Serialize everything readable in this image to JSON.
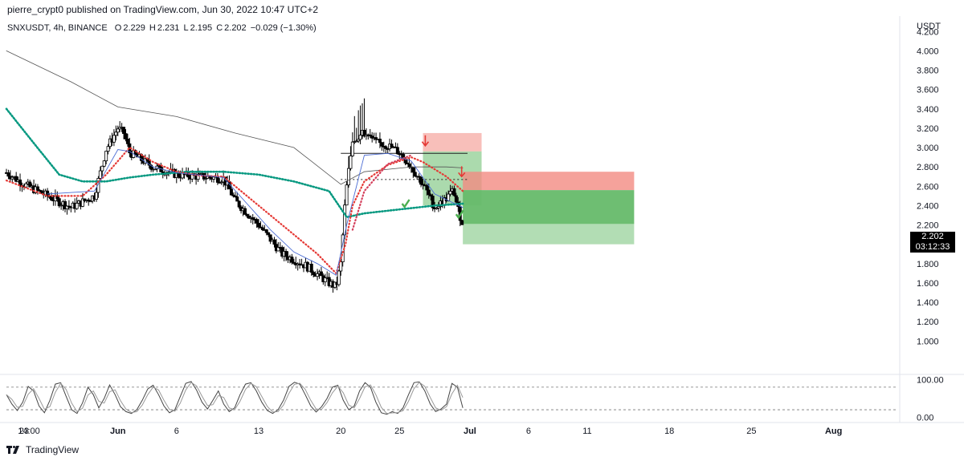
{
  "header": {
    "published": "pierre_crypt0 published on TradingView.com, Jun 30, 2022 10:47 UTC+2"
  },
  "symbol": {
    "name": "SNXUSDT, 4h, BINANCE",
    "o_label": "O",
    "o_value": "2.229",
    "h_label": "H",
    "h_value": "2.231",
    "l_label": "L",
    "l_value": "2.195",
    "c_label": "C",
    "c_value": "2.202",
    "change": "−0.029 (−1.30%)"
  },
  "price_tag": {
    "price": "2.202",
    "countdown": "03:12:33"
  },
  "footer": {
    "brand": "TradingView"
  },
  "colors": {
    "candle": "#000000",
    "ma_long": "#555555",
    "ema_teal": "#089981",
    "ema_red": "#e53935",
    "ema_blue": "#4b6cd4",
    "ema_pink": "#d4405c",
    "zone_loss": "#f28b82",
    "zone_profit": "#66bb6a",
    "stoch": "#444444"
  },
  "chart_data": [
    {
      "type": "candlestick",
      "title": "",
      "symbol": "SNXUSDT",
      "interval": "4h",
      "exchange": "BINANCE",
      "currency_label": "USDT",
      "y_ticks": [
        "4.200",
        "4.000",
        "3.800",
        "3.600",
        "3.400",
        "3.200",
        "3.000",
        "2.800",
        "2.600",
        "2.400",
        "2.200",
        "2.000",
        "1.800",
        "1.600",
        "1.400",
        "1.200",
        "1.000"
      ],
      "ylim": [
        0.82,
        4.36
      ],
      "x_ticks": [
        "23",
        "14:00",
        "Jun",
        "6",
        "13",
        "20",
        "25",
        "Jul",
        "6",
        "11",
        "18",
        "25",
        "Aug"
      ],
      "x_tick_days": [
        -8,
        -7.58,
        0,
        5,
        12,
        19,
        24,
        30,
        35,
        40,
        47,
        54,
        61
      ],
      "xlim": [
        -9.5,
        66.5
      ],
      "anchors": [
        [
          -9.5,
          2.74
        ],
        [
          -8,
          2.62
        ],
        [
          -6,
          2.5
        ],
        [
          -4,
          2.38
        ],
        [
          -2,
          2.5
        ],
        [
          -1,
          2.98
        ],
        [
          0,
          3.2
        ],
        [
          0.5,
          3.15
        ],
        [
          1,
          2.95
        ],
        [
          3,
          2.8
        ],
        [
          5,
          2.72
        ],
        [
          7,
          2.7
        ],
        [
          9,
          2.68
        ],
        [
          10,
          2.45
        ],
        [
          12,
          2.2
        ],
        [
          14,
          1.9
        ],
        [
          16,
          1.78
        ],
        [
          18,
          1.6
        ],
        [
          18.6,
          1.56
        ],
        [
          19,
          1.8
        ],
        [
          19.4,
          2.5
        ],
        [
          20,
          3.08
        ],
        [
          21,
          3.15
        ],
        [
          22,
          3.05
        ],
        [
          23,
          3.02
        ],
        [
          24,
          2.95
        ],
        [
          25,
          2.8
        ],
        [
          26,
          2.62
        ],
        [
          27,
          2.38
        ],
        [
          27.8,
          2.45
        ],
        [
          28.6,
          2.56
        ],
        [
          29,
          2.35
        ],
        [
          29.4,
          2.2
        ]
      ],
      "last_close": 2.202,
      "overlays": [
        {
          "name": "MA long",
          "points": [
            [
              -9.5,
              4.0
            ],
            [
              -4,
              3.68
            ],
            [
              0,
              3.42
            ],
            [
              5,
              3.32
            ],
            [
              10,
              3.15
            ],
            [
              15,
              3.0
            ],
            [
              19,
              2.62
            ],
            [
              21,
              2.75
            ],
            [
              25,
              2.8
            ],
            [
              28,
              2.8
            ],
            [
              29.4,
              2.79
            ]
          ]
        },
        {
          "name": "EMA teal",
          "points": [
            [
              -9.5,
              3.4
            ],
            [
              -7,
              3.02
            ],
            [
              -5,
              2.72
            ],
            [
              -3,
              2.65
            ],
            [
              -1,
              2.65
            ],
            [
              1,
              2.69
            ],
            [
              3,
              2.72
            ],
            [
              6,
              2.75
            ],
            [
              9,
              2.75
            ],
            [
              12,
              2.72
            ],
            [
              15,
              2.65
            ],
            [
              18,
              2.55
            ],
            [
              19.5,
              2.28
            ],
            [
              21,
              2.32
            ],
            [
              24,
              2.36
            ],
            [
              27,
              2.4
            ],
            [
              29.4,
              2.42
            ]
          ]
        },
        {
          "name": "EMA red",
          "points": [
            [
              -9.5,
              2.66
            ],
            [
              -6,
              2.5
            ],
            [
              -3,
              2.5
            ],
            [
              -1,
              2.72
            ],
            [
              1,
              3.0
            ],
            [
              3,
              2.85
            ],
            [
              5,
              2.75
            ],
            [
              7,
              2.71
            ],
            [
              9,
              2.7
            ],
            [
              11,
              2.5
            ],
            [
              13,
              2.3
            ],
            [
              15,
              2.1
            ],
            [
              17,
              1.9
            ],
            [
              18.6,
              1.7
            ],
            [
              19.4,
              2.0
            ],
            [
              20,
              2.4
            ],
            [
              21,
              2.65
            ],
            [
              23,
              2.82
            ],
            [
              25,
              2.9
            ],
            [
              26,
              2.85
            ],
            [
              28,
              2.7
            ],
            [
              29.4,
              2.55
            ]
          ]
        },
        {
          "name": "EMA pink",
          "points": [
            [
              20,
              2.15
            ],
            [
              21,
              2.55
            ],
            [
              23,
              2.83
            ],
            [
              25,
              2.92
            ]
          ]
        },
        {
          "name": "EMA blue",
          "points": [
            [
              -6,
              2.52
            ],
            [
              -2,
              2.55
            ],
            [
              0,
              2.98
            ],
            [
              1,
              2.96
            ],
            [
              3,
              2.8
            ],
            [
              5,
              2.74
            ],
            [
              9,
              2.69
            ],
            [
              11,
              2.42
            ],
            [
              13,
              2.15
            ],
            [
              15,
              1.92
            ],
            [
              17,
              1.8
            ],
            [
              18.6,
              1.68
            ],
            [
              19.5,
              2.2
            ],
            [
              21,
              2.92
            ],
            [
              23,
              2.94
            ],
            [
              25,
              2.86
            ],
            [
              27,
              2.52
            ],
            [
              29.4,
              2.38
            ]
          ]
        }
      ],
      "annotations": {
        "hlines": [
          {
            "price": 2.94,
            "from": 19,
            "to": 29.8,
            "style": "solid"
          },
          {
            "price": 2.67,
            "from": 19,
            "to": 29.8,
            "style": "dotted"
          }
        ],
        "short_positions": [
          {
            "x_from": 26,
            "x_to": 31,
            "entry": 2.96,
            "stop": 3.15,
            "target": 2.4
          },
          {
            "x_from": 29.4,
            "x_to": 44,
            "entry": 2.56,
            "stop": 2.75,
            "target": 2.0,
            "partial": 2.21
          }
        ],
        "entry_arrows": [
          {
            "x": 26.2,
            "price": 3.06
          },
          {
            "x": 29.3,
            "price": 2.74
          }
        ],
        "checkmarks": [
          {
            "x": 24.5,
            "price": 2.42
          },
          {
            "x": 29.1,
            "price": 2.31
          }
        ]
      }
    },
    {
      "type": "line",
      "title": "",
      "y_ticks": [
        "100.00",
        "0.00"
      ],
      "ylim": [
        -14,
        116
      ],
      "levels": [
        80,
        20
      ],
      "series": [
        {
          "values": [
            60,
            35,
            18,
            40,
            82,
            70,
            30,
            12,
            45,
            88,
            92,
            55,
            20,
            10,
            38,
            80,
            60,
            25,
            50,
            86,
            60,
            28,
            15,
            10,
            20,
            45,
            75,
            85,
            60,
            30,
            12,
            20,
            55,
            90,
            95,
            72,
            40,
            22,
            45,
            70,
            35,
            15,
            25,
            60,
            88,
            92,
            70,
            40,
            18,
            10,
            20,
            45,
            82,
            93,
            88,
            60,
            30,
            14,
            28,
            50,
            80,
            85,
            45,
            20,
            30,
            70,
            92,
            80,
            40,
            12,
            8,
            15,
            10,
            25,
            60,
            92,
            94,
            70,
            35,
            15,
            22,
            35,
            90,
            80,
            25
          ]
        }
      ]
    }
  ]
}
